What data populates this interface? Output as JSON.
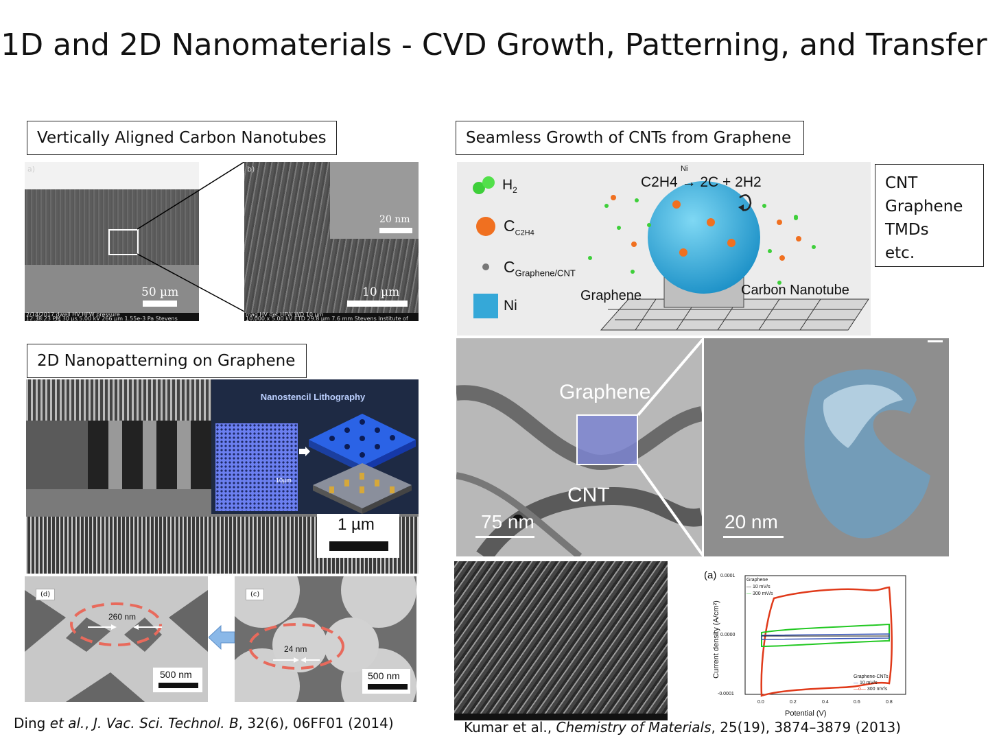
{
  "title": "1D and 2D Nanomaterials - CVD Growth, Patterning, and Transfer",
  "sections": {
    "vacnt": "Vertically Aligned Carbon Nanotubes",
    "patterning": "2D Nanopatterning on Graphene",
    "seamless": "Seamless Growth of CNTs from Graphene"
  },
  "materials_list": [
    "CNT",
    "Graphene",
    "TMDs",
    "etc."
  ],
  "sem_a": {
    "panel_label": "a)",
    "scale": "50 µm",
    "info": [
      "2/14/2017",
      "dwell",
      "HV",
      "HFW",
      "pressure",
      "12:38:23 PM",
      "30 µs",
      "5.00 kV",
      "266 µm",
      "1.55e-3 Pa",
      "Stevens Institute of Technology"
    ]
  },
  "sem_b": {
    "panel_label": "b)",
    "scale": "10 µm",
    "inset_scale": "20 nm",
    "info": [
      "mag",
      "HV",
      "det",
      "HFW",
      "WD",
      "10.000 x",
      "5.00 kV",
      "ETD",
      "29.8 µm",
      "7.6 mm",
      "10 µm",
      "Stevens Institute of Technology"
    ]
  },
  "stencil": {
    "title": "Nanostencil Lithography",
    "scale_inset": "10µm",
    "scale_main": "1 µm"
  },
  "holes": {
    "d": {
      "label": "(d)",
      "dim": "260 nm",
      "scale": "500 nm"
    },
    "c": {
      "label": "(c)",
      "dim": "24 nm",
      "scale": "500 nm"
    }
  },
  "ref_left": {
    "authors": "Ding ",
    "etal": "et al.",
    "sep": ", ",
    "journal": "J. Vac. Sci. Technol. B",
    "rest": ", 32(6), 06FF01 (2014)"
  },
  "ref_right": {
    "authors": "Kumar et al., ",
    "journal": "Chemistry of Materials",
    "rest": ", 25(19), 3874–3879 (2013)"
  },
  "schematic": {
    "legend_h2": "H",
    "legend_h2_sub": "2",
    "legend_c": "C",
    "legend_c_sub": "C2H4",
    "legend_cg": "C",
    "legend_cg_sub": "Graphene/CNT",
    "legend_ni": "Ni",
    "reaction_lhs": "C2H4",
    "reaction_cat": "Ni",
    "reaction_rhs": "2C + 2H2",
    "label_graphene": "Graphene",
    "label_cnt": "Carbon Nanotube"
  },
  "tem": {
    "label_graphene": "Graphene",
    "label_cnt": "CNT",
    "scale_left": "75 nm",
    "scale_right": "20 nm"
  },
  "cv_chart": {
    "panel": "(a)",
    "ylabel": "Current density (A/cm²)",
    "xlabel": "Potential (V)",
    "yticks": [
      "0.0001",
      "0.0000",
      "-0.0001"
    ],
    "xticks": [
      "0.0",
      "0.2",
      "0.4",
      "0.6",
      "0.8"
    ],
    "legend_top_title": "Graphene",
    "legend_top": [
      "10 mV/s",
      "300 mV/s"
    ],
    "legend_bottom_title": "Graphene-CNTs",
    "legend_bottom": [
      "10 mV/s",
      "300 mV/s"
    ]
  },
  "colors": {
    "cnt_sphere": "#2aa9dc",
    "h2_green": "#3ecf3a",
    "carbon_orange": "#f07020",
    "cv_red": "#e03a1a",
    "cv_green": "#22c822",
    "cv_blue": "#3a57b8"
  }
}
